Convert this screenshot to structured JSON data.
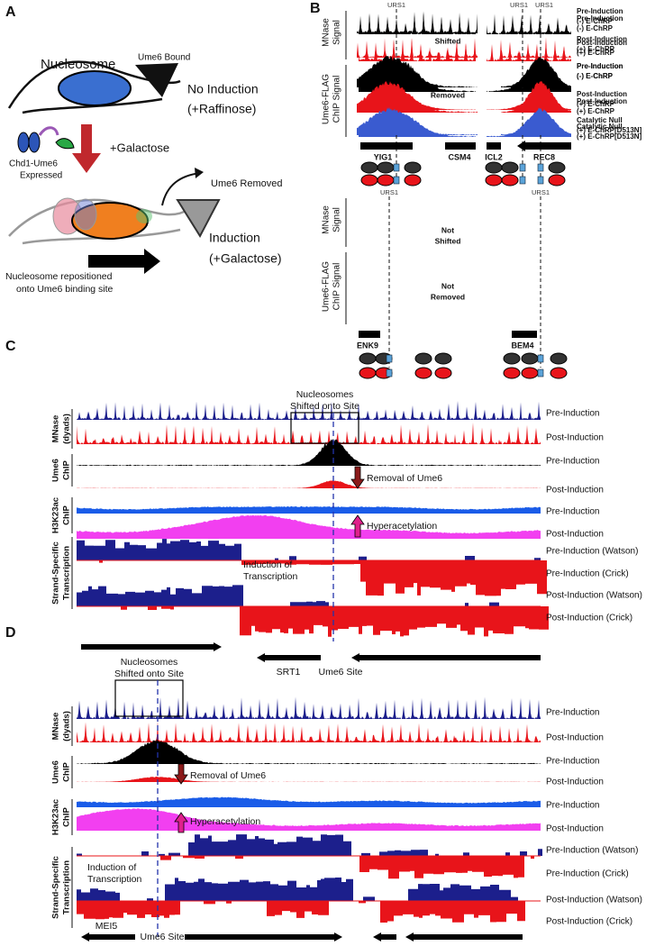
{
  "panel_a": {
    "label": "A",
    "nucleosome": "Nucleosome",
    "ume6_bound": "Ume6 Bound",
    "no_induction": [
      "No Induction",
      "(+Raffinose)"
    ],
    "chd1": [
      "Chd1-Ume6",
      "Expressed"
    ],
    "galactose": "+Galactose",
    "ume6_removed": "Ume6 Removed",
    "induction": [
      "Induction",
      "(+Galactose)"
    ],
    "repositioned": [
      "Nucleosome repositioned",
      "onto Ume6 binding site"
    ]
  },
  "panel_b": {
    "label": "B",
    "mnase_axis": [
      "MNase",
      "Signal"
    ],
    "chip_axis": [
      "Ume6-FLAG",
      "ChIP Signal"
    ],
    "top": {
      "urs_left": "URS1",
      "urs_right": [
        "URS1",
        "URS1"
      ],
      "shifted": [
        "Shifted"
      ],
      "removed": [
        "Removed"
      ],
      "genes_left": [
        "YIG1",
        "CSM4"
      ],
      "genes_right": [
        "ICL2",
        "REC8"
      ],
      "conditions": [
        [
          "Pre-Induction",
          "(-) E-ChRP"
        ],
        [
          "Post-Induction",
          "(+) E-ChRP"
        ],
        [
          "Pre-Induction",
          "(-) E-ChRP"
        ],
        [
          "Post-Induction",
          "(+) E-ChRP"
        ],
        [
          "Catalytic Null",
          "(+) E-ChRP[D513N]"
        ]
      ]
    },
    "bottom": {
      "urs_left": "URS1",
      "urs_right": [
        "URS1"
      ],
      "shifted": [
        "Not",
        "Shifted"
      ],
      "removed": [
        "Not",
        "Removed"
      ],
      "genes_left": [
        "ENK9"
      ],
      "genes_right": [
        "BEM4"
      ],
      "conditions": [
        [
          "Pre-Induction",
          "(-) E-ChRP"
        ],
        [
          "Post-Induction",
          "(+) E-ChRP"
        ],
        [
          "Pre-Induction",
          "(-) E-ChRP"
        ],
        [
          "Post-Induction",
          "(+) E-ChRP"
        ],
        [
          "Catalytic Null",
          "(+) E-ChRP[D513N]"
        ]
      ]
    }
  },
  "panel_c": {
    "label": "C",
    "box_title": [
      "Nucleosomes",
      "Shifted onto Site"
    ],
    "axes": [
      [
        "MNase",
        "(dyads)"
      ],
      [
        "Ume6",
        "ChIP"
      ],
      [
        "H3K23ac",
        "ChIP"
      ],
      [
        "Strand-Specific",
        "Transcription"
      ]
    ],
    "tracks": [
      "Pre-Induction",
      "Post-Induction",
      "Pre-Induction",
      "Post-Induction",
      "Pre-Induction",
      "Post-Induction",
      "Pre-Induction (Watson)",
      "Pre-Induction (Crick)",
      "Post-Induction (Watson)",
      "Post-Induction (Crick)"
    ],
    "removal": "Removal of Ume6",
    "hyper": "Hyperacetylation",
    "induction": [
      "Induction of",
      "Transcription"
    ],
    "gene": "SRT1",
    "site": "Ume6 Site"
  },
  "panel_d": {
    "label": "D",
    "box_title": [
      "Nucleosomes",
      "Shifted onto Site"
    ],
    "axes": [
      [
        "MNase",
        "(dyads)"
      ],
      [
        "Ume6",
        "ChIP"
      ],
      [
        "H3K23ac",
        "ChIP"
      ],
      [
        "Strand-Specific",
        "Transcription"
      ]
    ],
    "tracks": [
      "Pre-Induction",
      "Post-Induction",
      "Pre-Induction",
      "Post-Induction",
      "Pre-Induction",
      "Post-Induction",
      "Pre-Induction (Watson)",
      "Pre-Induction (Crick)",
      "Post-Induction (Watson)",
      "Post-Induction (Crick)"
    ],
    "removal": "Removal of Ume6",
    "hyper": "Hyperacetylation",
    "induction": [
      "Induction of",
      "Transcription"
    ],
    "gene": "MEI5",
    "site": "Ume6 Site"
  }
}
